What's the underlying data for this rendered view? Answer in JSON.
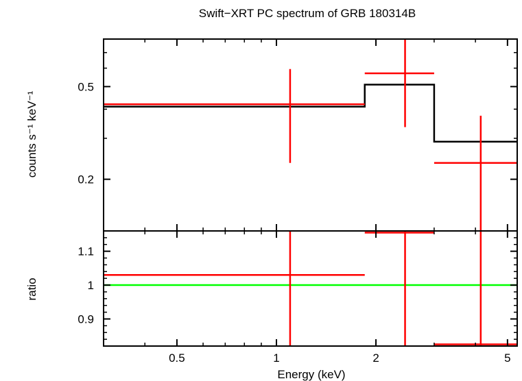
{
  "chart_data": {
    "type": "scatter",
    "title": "Swift−XRT PC spectrum of GRB 180314B",
    "xlabel": "Energy (keV)",
    "xscale": "log",
    "xlim": [
      0.3,
      5.35
    ],
    "x_ticks": [
      {
        "value": 0.5,
        "label": "0.5"
      },
      {
        "value": 1,
        "label": "1"
      },
      {
        "value": 2,
        "label": "2"
      },
      {
        "value": 5,
        "label": "5"
      }
    ],
    "panels": [
      {
        "id": "spectrum",
        "ylabel": "counts s⁻¹ keV⁻¹",
        "yscale": "log",
        "ylim": [
          0.12,
          0.8
        ],
        "y_ticks": [
          {
            "value": 0.2,
            "label": "0.2"
          },
          {
            "value": 0.5,
            "label": "0.5"
          }
        ],
        "data": {
          "color": "#ff0000",
          "points": [
            {
              "x": 1.1,
              "xlo": 0.3,
              "xhi": 1.85,
              "y": 0.42,
              "ylo": 0.235,
              "yhi": 0.595
            },
            {
              "x": 2.45,
              "xlo": 1.85,
              "xhi": 3.0,
              "y": 0.57,
              "ylo": 0.335,
              "yhi": 0.8
            },
            {
              "x": 4.15,
              "xlo": 3.0,
              "xhi": 5.35,
              "y": 0.235,
              "ylo": 0.12,
              "yhi": 0.375
            }
          ]
        },
        "model": {
          "color": "#000000",
          "steps": [
            {
              "xlo": 0.3,
              "xhi": 1.85,
              "y": 0.41
            },
            {
              "xlo": 1.85,
              "xhi": 3.0,
              "y": 0.51
            },
            {
              "xlo": 3.0,
              "xhi": 5.35,
              "y": 0.29
            }
          ]
        }
      },
      {
        "id": "ratio",
        "ylabel": "ratio",
        "yscale": "linear",
        "ylim": [
          0.82,
          1.16
        ],
        "y_ticks": [
          {
            "value": 0.9,
            "label": "0.9"
          },
          {
            "value": 1,
            "label": "1"
          },
          {
            "value": 1.1,
            "label": "1.1"
          }
        ],
        "data": {
          "color": "#ff0000",
          "points": [
            {
              "x": 1.1,
              "xlo": 0.3,
              "xhi": 1.85,
              "y": 1.03,
              "ylo": 0.82,
              "yhi": 1.16
            },
            {
              "x": 2.45,
              "xlo": 1.85,
              "xhi": 3.0,
              "y": 1.155,
              "ylo": 0.82,
              "yhi": 1.16
            },
            {
              "x": 4.15,
              "xlo": 3.0,
              "xhi": 5.35,
              "y": 0.825,
              "ylo": 0.82,
              "yhi": 1.16
            }
          ]
        },
        "reference_line": {
          "y": 1,
          "color": "#00ff00"
        }
      }
    ],
    "grid": false,
    "legend": "none"
  }
}
